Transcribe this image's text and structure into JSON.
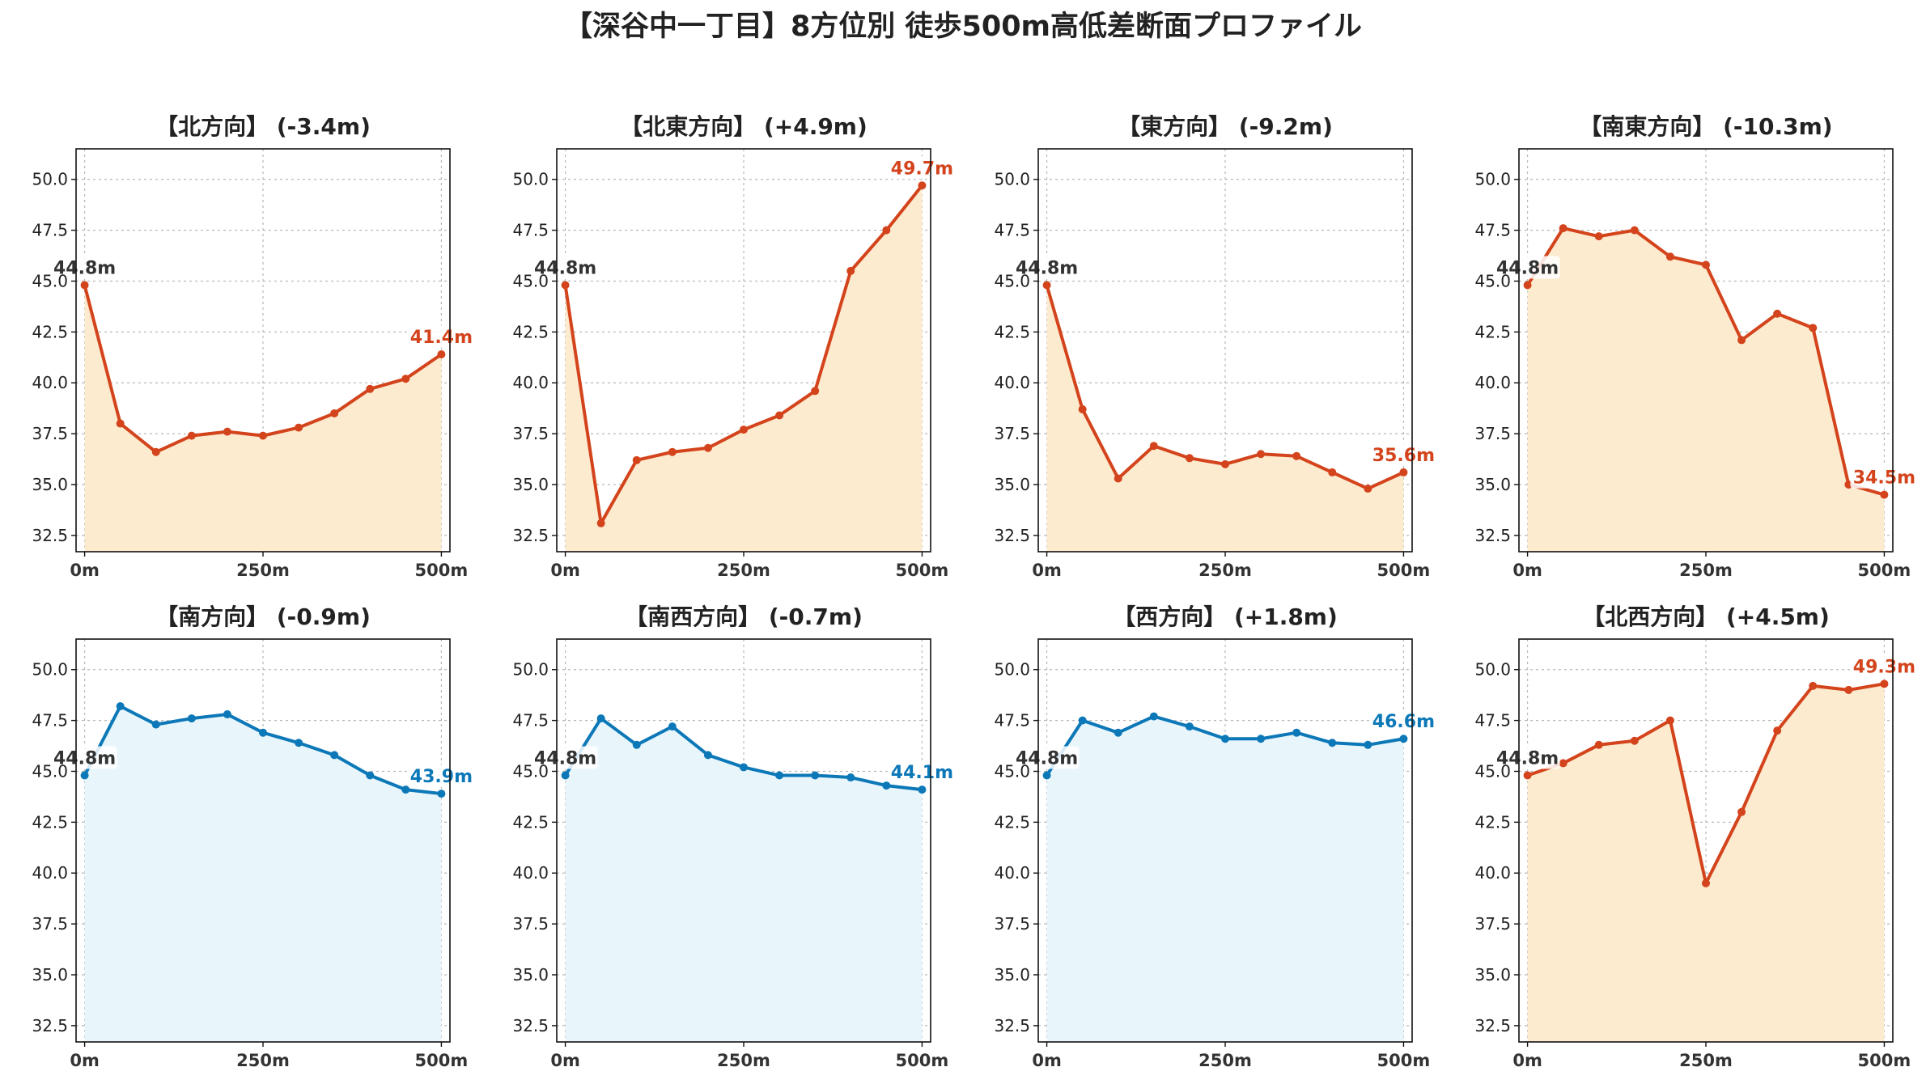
{
  "title": "【深谷中一丁目】8方位別 徒歩500m高低差断面プロファイル",
  "colors": {
    "up_line": "#d4441c",
    "up_fill": "#fdebd0",
    "down_line": "#0c78b8",
    "down_fill": "#e8f6fc",
    "start_text": "#333333"
  },
  "chart_data": [
    {
      "type": "area",
      "title": "【北方向】 (-3.4m)",
      "trend": "up",
      "x": [
        0,
        50,
        100,
        150,
        200,
        250,
        300,
        350,
        400,
        450,
        500
      ],
      "values": [
        44.8,
        38.0,
        36.6,
        37.4,
        37.6,
        37.4,
        37.8,
        38.5,
        39.7,
        40.2,
        41.4
      ],
      "start_label": "44.8m",
      "end_label": "41.4m",
      "xticks": [
        0,
        250,
        500
      ],
      "xtick_labels": [
        "0m",
        "250m",
        "500m"
      ],
      "yticks": [
        32.5,
        35.0,
        37.5,
        40.0,
        42.5,
        45.0,
        47.5,
        50.0
      ],
      "ytick_labels": [
        "32.5",
        "35.0",
        "37.5",
        "40.0",
        "42.5",
        "45.0",
        "47.5",
        "50.0"
      ],
      "xlim": [
        -12,
        512
      ],
      "ylim": [
        31.7,
        51.5
      ],
      "grid": true
    },
    {
      "type": "area",
      "title": "【北東方向】 (+4.9m)",
      "trend": "up",
      "x": [
        0,
        50,
        100,
        150,
        200,
        250,
        300,
        350,
        400,
        450,
        500
      ],
      "values": [
        44.8,
        33.1,
        36.2,
        36.6,
        36.8,
        37.7,
        38.4,
        39.6,
        45.5,
        47.5,
        49.7
      ],
      "start_label": "44.8m",
      "end_label": "49.7m",
      "xticks": [
        0,
        250,
        500
      ],
      "xtick_labels": [
        "0m",
        "250m",
        "500m"
      ],
      "yticks": [
        32.5,
        35.0,
        37.5,
        40.0,
        42.5,
        45.0,
        47.5,
        50.0
      ],
      "ytick_labels": [
        "32.5",
        "35.0",
        "37.5",
        "40.0",
        "42.5",
        "45.0",
        "47.5",
        "50.0"
      ],
      "xlim": [
        -12,
        512
      ],
      "ylim": [
        31.7,
        51.5
      ],
      "grid": true
    },
    {
      "type": "area",
      "title": "【東方向】 (-9.2m)",
      "trend": "up",
      "x": [
        0,
        50,
        100,
        150,
        200,
        250,
        300,
        350,
        400,
        450,
        500
      ],
      "values": [
        44.8,
        38.7,
        35.3,
        36.9,
        36.3,
        36.0,
        36.5,
        36.4,
        35.6,
        34.8,
        35.6
      ],
      "start_label": "44.8m",
      "end_label": "35.6m",
      "xticks": [
        0,
        250,
        500
      ],
      "xtick_labels": [
        "0m",
        "250m",
        "500m"
      ],
      "yticks": [
        32.5,
        35.0,
        37.5,
        40.0,
        42.5,
        45.0,
        47.5,
        50.0
      ],
      "ytick_labels": [
        "32.5",
        "35.0",
        "37.5",
        "40.0",
        "42.5",
        "45.0",
        "47.5",
        "50.0"
      ],
      "xlim": [
        -12,
        512
      ],
      "ylim": [
        31.7,
        51.5
      ],
      "grid": true
    },
    {
      "type": "area",
      "title": "【南東方向】 (-10.3m)",
      "trend": "up",
      "x": [
        0,
        50,
        100,
        150,
        200,
        250,
        300,
        350,
        400,
        450,
        500
      ],
      "values": [
        44.8,
        47.6,
        47.2,
        47.5,
        46.2,
        45.8,
        42.1,
        43.4,
        42.7,
        35.0,
        34.5
      ],
      "start_label": "44.8m",
      "end_label": "34.5m",
      "xticks": [
        0,
        250,
        500
      ],
      "xtick_labels": [
        "0m",
        "250m",
        "500m"
      ],
      "yticks": [
        32.5,
        35.0,
        37.5,
        40.0,
        42.5,
        45.0,
        47.5,
        50.0
      ],
      "ytick_labels": [
        "32.5",
        "35.0",
        "37.5",
        "40.0",
        "42.5",
        "45.0",
        "47.5",
        "50.0"
      ],
      "xlim": [
        -12,
        512
      ],
      "ylim": [
        31.7,
        51.5
      ],
      "grid": true
    },
    {
      "type": "area",
      "title": "【南方向】 (-0.9m)",
      "trend": "down",
      "x": [
        0,
        50,
        100,
        150,
        200,
        250,
        300,
        350,
        400,
        450,
        500
      ],
      "values": [
        44.8,
        48.2,
        47.3,
        47.6,
        47.8,
        46.9,
        46.4,
        45.8,
        44.8,
        44.1,
        43.9
      ],
      "start_label": "44.8m",
      "end_label": "43.9m",
      "xticks": [
        0,
        250,
        500
      ],
      "xtick_labels": [
        "0m",
        "250m",
        "500m"
      ],
      "yticks": [
        32.5,
        35.0,
        37.5,
        40.0,
        42.5,
        45.0,
        47.5,
        50.0
      ],
      "ytick_labels": [
        "32.5",
        "35.0",
        "37.5",
        "40.0",
        "42.5",
        "45.0",
        "47.5",
        "50.0"
      ],
      "xlim": [
        -12,
        512
      ],
      "ylim": [
        31.7,
        51.5
      ],
      "grid": true
    },
    {
      "type": "area",
      "title": "【南西方向】 (-0.7m)",
      "trend": "down",
      "x": [
        0,
        50,
        100,
        150,
        200,
        250,
        300,
        350,
        400,
        450,
        500
      ],
      "values": [
        44.8,
        47.6,
        46.3,
        47.2,
        45.8,
        45.2,
        44.8,
        44.8,
        44.7,
        44.3,
        44.1
      ],
      "start_label": "44.8m",
      "end_label": "44.1m",
      "xticks": [
        0,
        250,
        500
      ],
      "xtick_labels": [
        "0m",
        "250m",
        "500m"
      ],
      "yticks": [
        32.5,
        35.0,
        37.5,
        40.0,
        42.5,
        45.0,
        47.5,
        50.0
      ],
      "ytick_labels": [
        "32.5",
        "35.0",
        "37.5",
        "40.0",
        "42.5",
        "45.0",
        "47.5",
        "50.0"
      ],
      "xlim": [
        -12,
        512
      ],
      "ylim": [
        31.7,
        51.5
      ],
      "grid": true
    },
    {
      "type": "area",
      "title": "【西方向】 (+1.8m)",
      "trend": "down",
      "x": [
        0,
        50,
        100,
        150,
        200,
        250,
        300,
        350,
        400,
        450,
        500
      ],
      "values": [
        44.8,
        47.5,
        46.9,
        47.7,
        47.2,
        46.6,
        46.6,
        46.9,
        46.4,
        46.3,
        46.6
      ],
      "start_label": "44.8m",
      "end_label": "46.6m",
      "xticks": [
        0,
        250,
        500
      ],
      "xtick_labels": [
        "0m",
        "250m",
        "500m"
      ],
      "yticks": [
        32.5,
        35.0,
        37.5,
        40.0,
        42.5,
        45.0,
        47.5,
        50.0
      ],
      "ytick_labels": [
        "32.5",
        "35.0",
        "37.5",
        "40.0",
        "42.5",
        "45.0",
        "47.5",
        "50.0"
      ],
      "xlim": [
        -12,
        512
      ],
      "ylim": [
        31.7,
        51.5
      ],
      "grid": true
    },
    {
      "type": "area",
      "title": "【北西方向】 (+4.5m)",
      "trend": "up",
      "x": [
        0,
        50,
        100,
        150,
        200,
        250,
        300,
        350,
        400,
        450,
        500
      ],
      "values": [
        44.8,
        45.4,
        46.3,
        46.5,
        47.5,
        39.5,
        43.0,
        47.0,
        49.2,
        49.0,
        49.3
      ],
      "start_label": "44.8m",
      "end_label": "49.3m",
      "xticks": [
        0,
        250,
        500
      ],
      "xtick_labels": [
        "0m",
        "250m",
        "500m"
      ],
      "yticks": [
        32.5,
        35.0,
        37.5,
        40.0,
        42.5,
        45.0,
        47.5,
        50.0
      ],
      "ytick_labels": [
        "32.5",
        "35.0",
        "37.5",
        "40.0",
        "42.5",
        "45.0",
        "47.5",
        "50.0"
      ],
      "xlim": [
        -12,
        512
      ],
      "ylim": [
        31.7,
        51.5
      ],
      "grid": true
    }
  ]
}
